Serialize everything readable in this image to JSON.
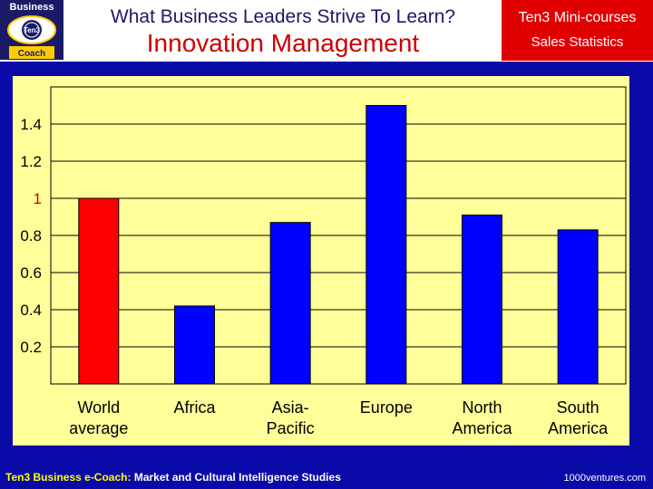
{
  "header": {
    "logo": {
      "top_text": "Business",
      "center_text": "Ten3",
      "bottom_text": "Coach"
    },
    "title": "What Business Leaders Strive To Learn?",
    "subtitle": "Innovation Management",
    "badge": {
      "title": "Ten3 Mini-courses",
      "subtitle": "Sales Statistics"
    }
  },
  "colors": {
    "panel": "#0a0aa8",
    "plot": "#ffff99",
    "bar": "#0000ff",
    "highlight_bar": "#ff0000",
    "highlight_tick": "#cc0000"
  },
  "chart_data": {
    "type": "bar",
    "categories": [
      [
        "World",
        "average"
      ],
      [
        "Africa"
      ],
      [
        "Asia-",
        "Pacific"
      ],
      [
        "Europe"
      ],
      [
        "North",
        "America"
      ],
      [
        "South",
        "America"
      ]
    ],
    "values": [
      1.0,
      0.42,
      0.87,
      1.5,
      0.91,
      0.83
    ],
    "highlight_index": 0,
    "ylim": [
      0,
      1.6
    ],
    "yticks": [
      {
        "value": 0.2,
        "label": "0.2"
      },
      {
        "value": 0.4,
        "label": "0.4"
      },
      {
        "value": 0.6,
        "label": "0.6"
      },
      {
        "value": 0.8,
        "label": "0.8"
      },
      {
        "value": 1.0,
        "label": "1"
      },
      {
        "value": 1.2,
        "label": "1.2"
      },
      {
        "value": 1.4,
        "label": "1.4"
      }
    ],
    "highlight_tick_value": 1.0,
    "grid": true,
    "title": "",
    "xlabel": "",
    "ylabel": ""
  },
  "footer": {
    "left_highlight": "Ten3 Business e-Coach:",
    "left_rest": " Market and Cultural Intelligence Studies",
    "right": "1000ventures.com"
  }
}
